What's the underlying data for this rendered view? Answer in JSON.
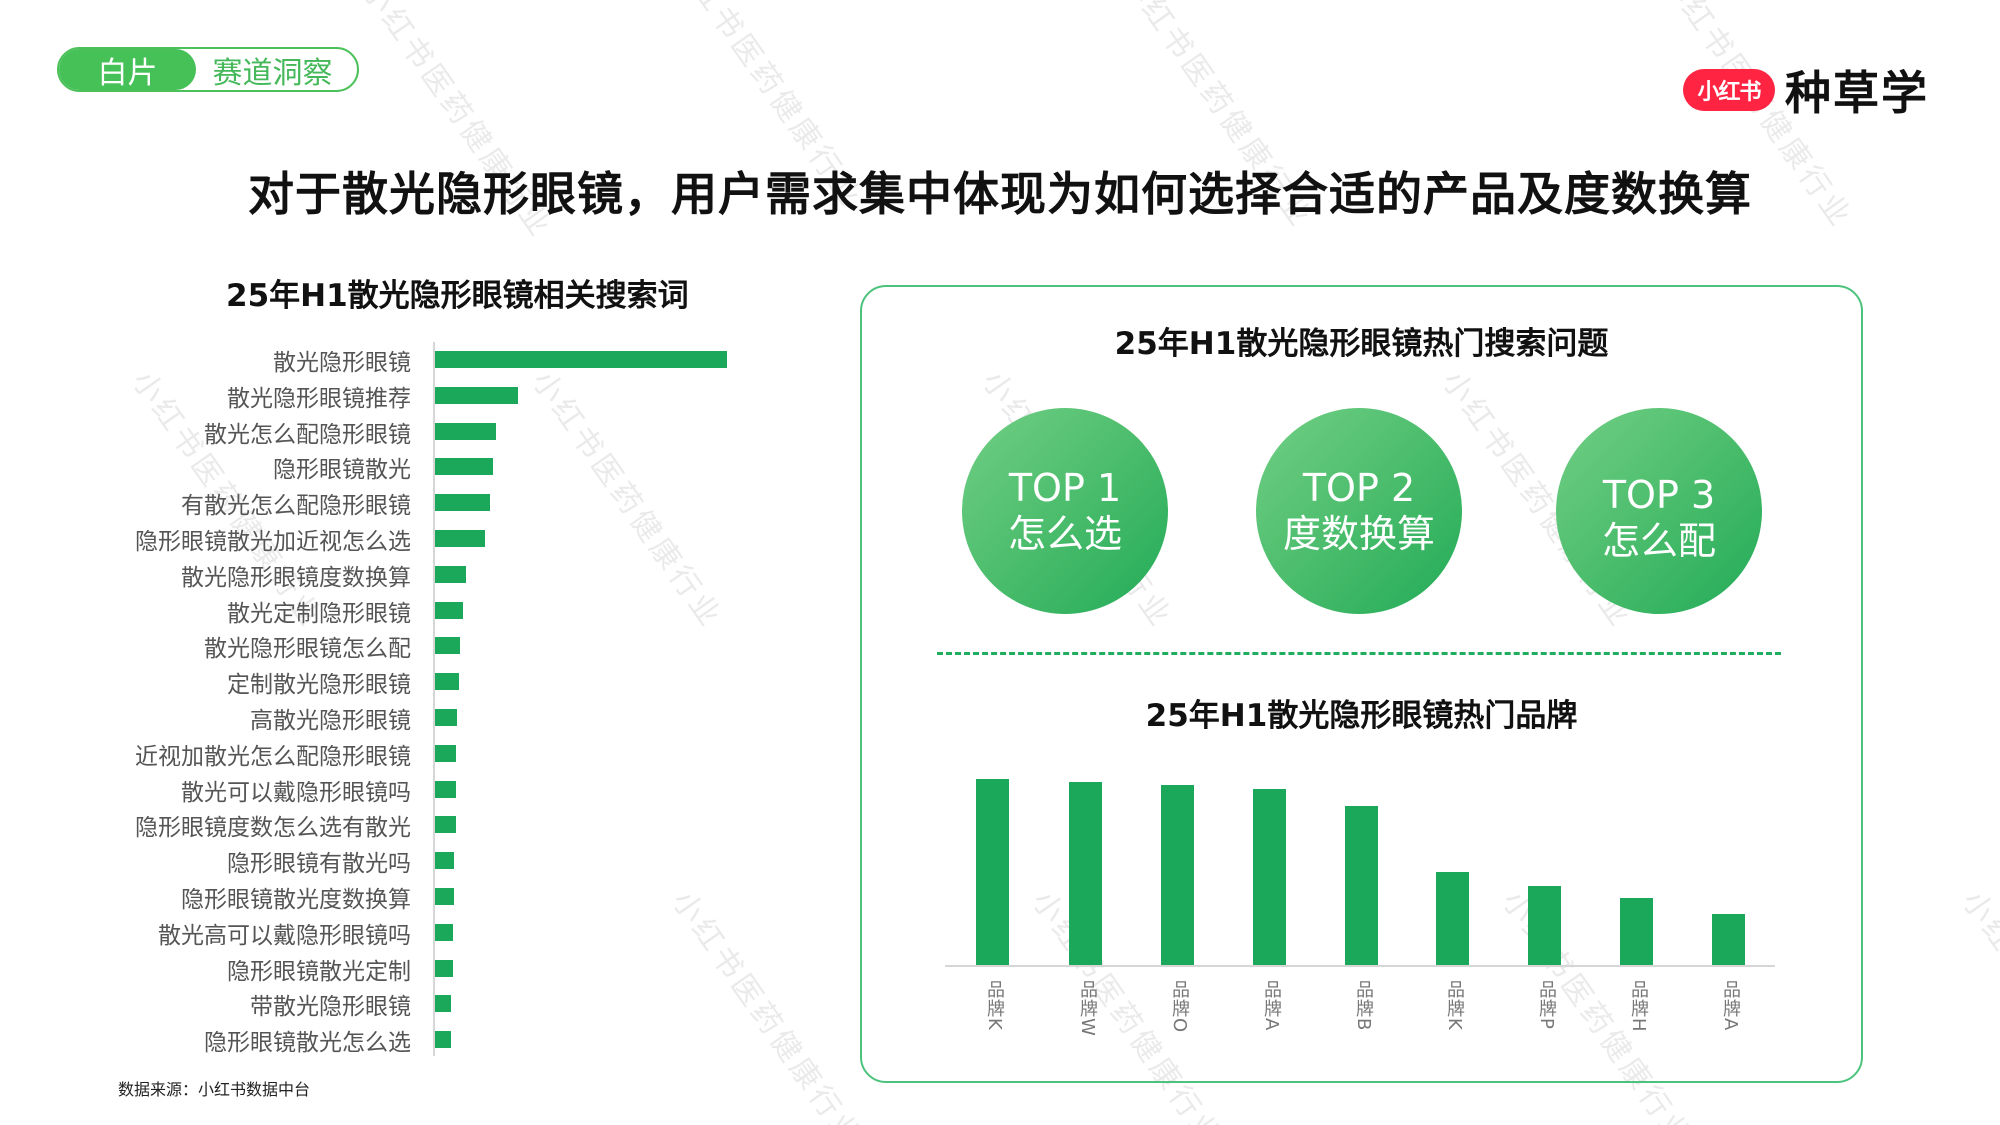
{
  "header": {
    "pill_left": "白片",
    "pill_right": "赛道洞察",
    "logo_badge": "小红书",
    "logo_text": "种草学"
  },
  "main_title": "对于散光隐形眼镜，用户需求集中体现为如何选择合适的产品及度数换算",
  "watermark": "小红书医药健康行业",
  "colors": {
    "accent_green": "#1ca85a",
    "pill_green": "#45c158",
    "logo_red": "#ff2442",
    "box_border": "#4cc37c"
  },
  "left_chart": {
    "title": "25年H1散光隐形眼镜相关搜索词",
    "source": "数据来源：小红书数据中台"
  },
  "right_panel": {
    "questions_title": "25年H1散光隐形眼镜热门搜索问题",
    "top_questions": [
      {
        "rank": "TOP 1",
        "label": "怎么选"
      },
      {
        "rank": "TOP 2",
        "label": "度数换算"
      },
      {
        "rank": "TOP 3",
        "label": "怎么配"
      }
    ],
    "brands_title": "25年H1散光隐形眼镜热门品牌"
  },
  "chart_data": [
    {
      "type": "bar",
      "orientation": "horizontal",
      "title": "25年H1散光隐形眼镜相关搜索词",
      "xlabel": "",
      "ylabel": "",
      "grid": false,
      "legend": null,
      "note": "No axis values shown; values are relative bar lengths (px, top bar = 292).",
      "categories": [
        "散光隐形眼镜",
        "散光隐形眼镜推荐",
        "散光怎么配隐形眼镜",
        "隐形眼镜散光",
        "有散光怎么配隐形眼镜",
        "隐形眼镜散光加近视怎么选",
        "散光隐形眼镜度数换算",
        "散光定制隐形眼镜",
        "散光隐形眼镜怎么配",
        "定制散光隐形眼镜",
        "高散光隐形眼镜",
        "近视加散光怎么配隐形眼镜",
        "散光可以戴隐形眼镜吗",
        "隐形眼镜度数怎么选有散光",
        "隐形眼镜有散光吗",
        "隐形眼镜散光度数换算",
        "散光高可以戴隐形眼镜吗",
        "隐形眼镜散光定制",
        "带散光隐形眼镜",
        "隐形眼镜散光怎么选"
      ],
      "values": [
        292,
        83,
        61,
        58,
        55,
        50,
        31,
        28,
        25,
        24,
        22,
        21,
        21,
        21,
        19,
        19,
        18,
        18,
        16,
        16
      ],
      "source": "数据来源：小红书数据中台"
    },
    {
      "type": "bar",
      "orientation": "vertical",
      "title": "25年H1散光隐形眼镜热门品牌",
      "xlabel": "",
      "ylabel": "",
      "grid": false,
      "legend": null,
      "note": "No axis values shown; values are relative bar heights (px).",
      "categories": [
        "品牌K",
        "品牌W",
        "品牌O",
        "品牌A",
        "品牌B",
        "品牌K",
        "品牌P",
        "品牌H",
        "品牌A"
      ],
      "values": [
        186,
        183,
        180,
        176,
        159,
        93,
        79,
        67,
        51
      ]
    }
  ]
}
